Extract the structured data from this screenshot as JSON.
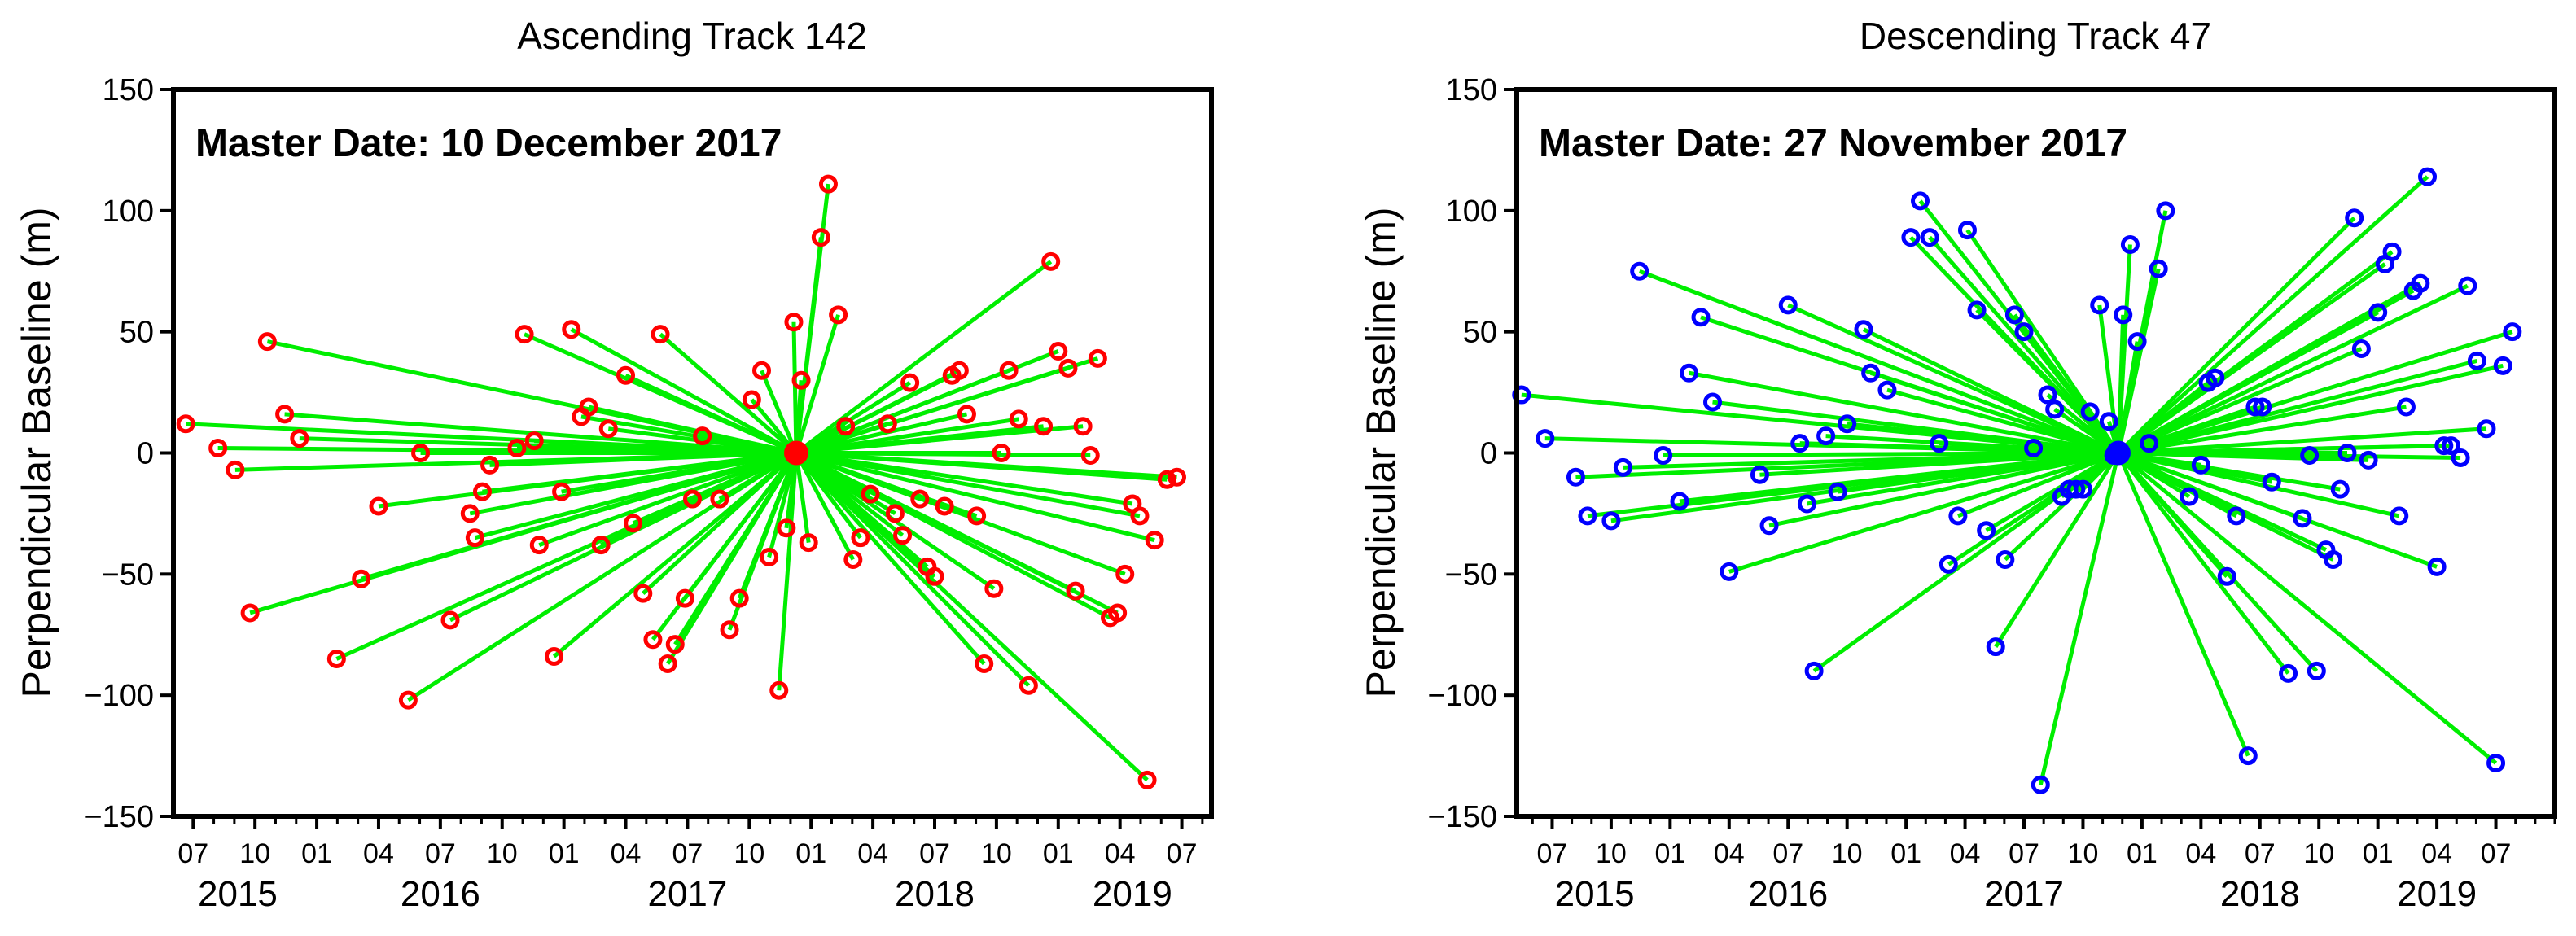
{
  "chart_data": [
    {
      "type": "scatter",
      "title": "Ascending Track 142",
      "annotation": "Master Date: 10 December 2017",
      "ylabel": "Perpendicular Baseline (m)",
      "xlabel": "",
      "ylim": [
        -150,
        150
      ],
      "yticks": [
        -150,
        -100,
        -50,
        0,
        50,
        100,
        150
      ],
      "xlim": [
        2015.42,
        2019.62
      ],
      "month_ticks": [
        "07",
        "10",
        "01",
        "04",
        "07",
        "10",
        "01",
        "04",
        "07",
        "10",
        "01",
        "04",
        "07",
        "10",
        "01",
        "04",
        "07"
      ],
      "month_tick_positions": [
        2015.5,
        2015.75,
        2016.0,
        2016.25,
        2016.5,
        2016.75,
        2017.0,
        2017.25,
        2017.5,
        2017.75,
        2018.0,
        2018.25,
        2018.5,
        2018.75,
        2019.0,
        2019.25,
        2019.5
      ],
      "year_labels": [
        "2015",
        "2016",
        "2017",
        "2018",
        "2019"
      ],
      "year_label_positions": [
        2015.68,
        2016.5,
        2017.5,
        2018.5,
        2019.3
      ],
      "point_color": "#ff0000",
      "line_color": "#00ee00",
      "master": {
        "t": 2017.94,
        "b": 0
      },
      "points": [
        {
          "t": 2015.47,
          "b": 12
        },
        {
          "t": 2015.6,
          "b": 2
        },
        {
          "t": 2015.67,
          "b": -7
        },
        {
          "t": 2015.73,
          "b": -66
        },
        {
          "t": 2015.8,
          "b": 46
        },
        {
          "t": 2015.87,
          "b": 16
        },
        {
          "t": 2015.93,
          "b": 6
        },
        {
          "t": 2016.08,
          "b": -85
        },
        {
          "t": 2016.18,
          "b": -52
        },
        {
          "t": 2016.25,
          "b": -22
        },
        {
          "t": 2016.37,
          "b": -102
        },
        {
          "t": 2016.42,
          "b": 0
        },
        {
          "t": 2016.54,
          "b": -69
        },
        {
          "t": 2016.62,
          "b": -25
        },
        {
          "t": 2016.64,
          "b": -35
        },
        {
          "t": 2016.67,
          "b": -16
        },
        {
          "t": 2016.7,
          "b": -5
        },
        {
          "t": 2016.81,
          "b": 2
        },
        {
          "t": 2016.84,
          "b": 49
        },
        {
          "t": 2016.88,
          "b": 5
        },
        {
          "t": 2016.9,
          "b": -38
        },
        {
          "t": 2016.96,
          "b": -84
        },
        {
          "t": 2016.99,
          "b": -16
        },
        {
          "t": 2017.03,
          "b": 51
        },
        {
          "t": 2017.07,
          "b": 15
        },
        {
          "t": 2017.1,
          "b": 19
        },
        {
          "t": 2017.15,
          "b": -38
        },
        {
          "t": 2017.18,
          "b": 10
        },
        {
          "t": 2017.25,
          "b": 32
        },
        {
          "t": 2017.28,
          "b": -29
        },
        {
          "t": 2017.32,
          "b": -58
        },
        {
          "t": 2017.36,
          "b": -77
        },
        {
          "t": 2017.39,
          "b": 49
        },
        {
          "t": 2017.42,
          "b": -87
        },
        {
          "t": 2017.45,
          "b": -79
        },
        {
          "t": 2017.49,
          "b": -60
        },
        {
          "t": 2017.52,
          "b": -19
        },
        {
          "t": 2017.56,
          "b": 7
        },
        {
          "t": 2017.63,
          "b": -19
        },
        {
          "t": 2017.67,
          "b": -73
        },
        {
          "t": 2017.71,
          "b": -60
        },
        {
          "t": 2017.76,
          "b": 22
        },
        {
          "t": 2017.8,
          "b": 34
        },
        {
          "t": 2017.83,
          "b": -43
        },
        {
          "t": 2017.87,
          "b": -98
        },
        {
          "t": 2017.9,
          "b": -31
        },
        {
          "t": 2017.93,
          "b": 54
        },
        {
          "t": 2017.96,
          "b": 30
        },
        {
          "t": 2017.99,
          "b": -37
        },
        {
          "t": 2018.04,
          "b": 89
        },
        {
          "t": 2018.07,
          "b": 111
        },
        {
          "t": 2018.11,
          "b": 57
        },
        {
          "t": 2018.14,
          "b": 11
        },
        {
          "t": 2018.17,
          "b": -44
        },
        {
          "t": 2018.2,
          "b": -35
        },
        {
          "t": 2018.24,
          "b": -17
        },
        {
          "t": 2018.31,
          "b": 12
        },
        {
          "t": 2018.34,
          "b": -25
        },
        {
          "t": 2018.37,
          "b": -34
        },
        {
          "t": 2018.4,
          "b": 29
        },
        {
          "t": 2018.44,
          "b": -19
        },
        {
          "t": 2018.47,
          "b": -47
        },
        {
          "t": 2018.5,
          "b": -51
        },
        {
          "t": 2018.54,
          "b": -22
        },
        {
          "t": 2018.57,
          "b": 32
        },
        {
          "t": 2018.6,
          "b": 34
        },
        {
          "t": 2018.63,
          "b": 16
        },
        {
          "t": 2018.67,
          "b": -26
        },
        {
          "t": 2018.7,
          "b": -87
        },
        {
          "t": 2018.74,
          "b": -56
        },
        {
          "t": 2018.77,
          "b": 0
        },
        {
          "t": 2018.8,
          "b": 34
        },
        {
          "t": 2018.84,
          "b": 14
        },
        {
          "t": 2018.88,
          "b": -96
        },
        {
          "t": 2018.94,
          "b": 11
        },
        {
          "t": 2018.97,
          "b": 79
        },
        {
          "t": 2019.0,
          "b": 42
        },
        {
          "t": 2019.04,
          "b": 35
        },
        {
          "t": 2019.07,
          "b": -57
        },
        {
          "t": 2019.1,
          "b": 11
        },
        {
          "t": 2019.13,
          "b": -1
        },
        {
          "t": 2019.16,
          "b": 39
        },
        {
          "t": 2019.21,
          "b": -68
        },
        {
          "t": 2019.24,
          "b": -66
        },
        {
          "t": 2019.27,
          "b": -50
        },
        {
          "t": 2019.3,
          "b": -21
        },
        {
          "t": 2019.33,
          "b": -26
        },
        {
          "t": 2019.36,
          "b": -135
        },
        {
          "t": 2019.39,
          "b": -36
        },
        {
          "t": 2019.44,
          "b": -11
        },
        {
          "t": 2019.48,
          "b": -10
        }
      ]
    },
    {
      "type": "scatter",
      "title": "Descending Track 47",
      "annotation": "Master Date: 27 November 2017",
      "ylabel": "Perpendicular Baseline (m)",
      "xlabel": "",
      "ylim": [
        -150,
        150
      ],
      "yticks": [
        -150,
        -100,
        -50,
        0,
        50,
        100,
        150
      ],
      "xlim": [
        2015.35,
        2019.75
      ],
      "month_ticks": [
        "07",
        "10",
        "01",
        "04",
        "07",
        "10",
        "01",
        "04",
        "07",
        "10",
        "01",
        "04",
        "07",
        "10",
        "01",
        "04",
        "07"
      ],
      "month_tick_positions": [
        2015.5,
        2015.75,
        2016.0,
        2016.25,
        2016.5,
        2016.75,
        2017.0,
        2017.25,
        2017.5,
        2017.75,
        2018.0,
        2018.25,
        2018.5,
        2018.75,
        2019.0,
        2019.25,
        2019.5
      ],
      "year_labels": [
        "2015",
        "2016",
        "2017",
        "2018",
        "2019"
      ],
      "year_label_positions": [
        2015.68,
        2016.5,
        2017.5,
        2018.5,
        2019.25
      ],
      "point_color": "#0000ff",
      "line_color": "#00ee00",
      "master": {
        "t": 2017.9,
        "b": 0
      },
      "points": [
        {
          "t": 2015.37,
          "b": 24
        },
        {
          "t": 2015.47,
          "b": 6
        },
        {
          "t": 2015.6,
          "b": -10
        },
        {
          "t": 2015.65,
          "b": -26
        },
        {
          "t": 2015.75,
          "b": -28
        },
        {
          "t": 2015.8,
          "b": -6
        },
        {
          "t": 2015.87,
          "b": 75
        },
        {
          "t": 2015.97,
          "b": -1
        },
        {
          "t": 2016.04,
          "b": -20
        },
        {
          "t": 2016.08,
          "b": 33
        },
        {
          "t": 2016.13,
          "b": 56
        },
        {
          "t": 2016.18,
          "b": 21
        },
        {
          "t": 2016.25,
          "b": -49
        },
        {
          "t": 2016.38,
          "b": -9
        },
        {
          "t": 2016.42,
          "b": -30
        },
        {
          "t": 2016.5,
          "b": 61
        },
        {
          "t": 2016.55,
          "b": 4
        },
        {
          "t": 2016.58,
          "b": -21
        },
        {
          "t": 2016.61,
          "b": -90
        },
        {
          "t": 2016.66,
          "b": 7
        },
        {
          "t": 2016.71,
          "b": -16
        },
        {
          "t": 2016.75,
          "b": 12
        },
        {
          "t": 2016.82,
          "b": 51
        },
        {
          "t": 2016.85,
          "b": 33
        },
        {
          "t": 2016.92,
          "b": 26
        },
        {
          "t": 2017.02,
          "b": 89
        },
        {
          "t": 2017.06,
          "b": 104
        },
        {
          "t": 2017.1,
          "b": 89
        },
        {
          "t": 2017.14,
          "b": 4
        },
        {
          "t": 2017.18,
          "b": -46
        },
        {
          "t": 2017.22,
          "b": -26
        },
        {
          "t": 2017.26,
          "b": 92
        },
        {
          "t": 2017.3,
          "b": 59
        },
        {
          "t": 2017.34,
          "b": -32
        },
        {
          "t": 2017.38,
          "b": -80
        },
        {
          "t": 2017.42,
          "b": -44
        },
        {
          "t": 2017.46,
          "b": 57
        },
        {
          "t": 2017.5,
          "b": 50
        },
        {
          "t": 2017.54,
          "b": 2
        },
        {
          "t": 2017.57,
          "b": -137
        },
        {
          "t": 2017.6,
          "b": 24
        },
        {
          "t": 2017.63,
          "b": 18
        },
        {
          "t": 2017.66,
          "b": -18
        },
        {
          "t": 2017.69,
          "b": -15
        },
        {
          "t": 2017.72,
          "b": -15
        },
        {
          "t": 2017.75,
          "b": -15
        },
        {
          "t": 2017.78,
          "b": 17
        },
        {
          "t": 2017.82,
          "b": 61
        },
        {
          "t": 2017.86,
          "b": 13
        },
        {
          "t": 2017.88,
          "b": -1
        },
        {
          "t": 2017.92,
          "b": 57
        },
        {
          "t": 2017.95,
          "b": 86
        },
        {
          "t": 2017.98,
          "b": 46
        },
        {
          "t": 2018.03,
          "b": 4
        },
        {
          "t": 2018.07,
          "b": 76
        },
        {
          "t": 2018.1,
          "b": 100
        },
        {
          "t": 2018.2,
          "b": -18
        },
        {
          "t": 2018.25,
          "b": -5
        },
        {
          "t": 2018.28,
          "b": 29
        },
        {
          "t": 2018.31,
          "b": 31
        },
        {
          "t": 2018.36,
          "b": -51
        },
        {
          "t": 2018.4,
          "b": -26
        },
        {
          "t": 2018.45,
          "b": -125
        },
        {
          "t": 2018.48,
          "b": 19
        },
        {
          "t": 2018.51,
          "b": 19
        },
        {
          "t": 2018.55,
          "b": -12
        },
        {
          "t": 2018.62,
          "b": -91
        },
        {
          "t": 2018.68,
          "b": -27
        },
        {
          "t": 2018.71,
          "b": -1
        },
        {
          "t": 2018.74,
          "b": -90
        },
        {
          "t": 2018.78,
          "b": -40
        },
        {
          "t": 2018.81,
          "b": -44
        },
        {
          "t": 2018.84,
          "b": -15
        },
        {
          "t": 2018.87,
          "b": 0
        },
        {
          "t": 2018.9,
          "b": 97
        },
        {
          "t": 2018.93,
          "b": 43
        },
        {
          "t": 2018.96,
          "b": -3
        },
        {
          "t": 2019.0,
          "b": 58
        },
        {
          "t": 2019.03,
          "b": 78
        },
        {
          "t": 2019.06,
          "b": 83
        },
        {
          "t": 2019.09,
          "b": -26
        },
        {
          "t": 2019.12,
          "b": 19
        },
        {
          "t": 2019.15,
          "b": 67
        },
        {
          "t": 2019.18,
          "b": 70
        },
        {
          "t": 2019.21,
          "b": 114
        },
        {
          "t": 2019.25,
          "b": -47
        },
        {
          "t": 2019.28,
          "b": 3
        },
        {
          "t": 2019.31,
          "b": 3
        },
        {
          "t": 2019.35,
          "b": -2
        },
        {
          "t": 2019.38,
          "b": 69
        },
        {
          "t": 2019.42,
          "b": 38
        },
        {
          "t": 2019.46,
          "b": 10
        },
        {
          "t": 2019.5,
          "b": -128
        },
        {
          "t": 2019.53,
          "b": 36
        },
        {
          "t": 2019.57,
          "b": 50
        }
      ]
    }
  ]
}
